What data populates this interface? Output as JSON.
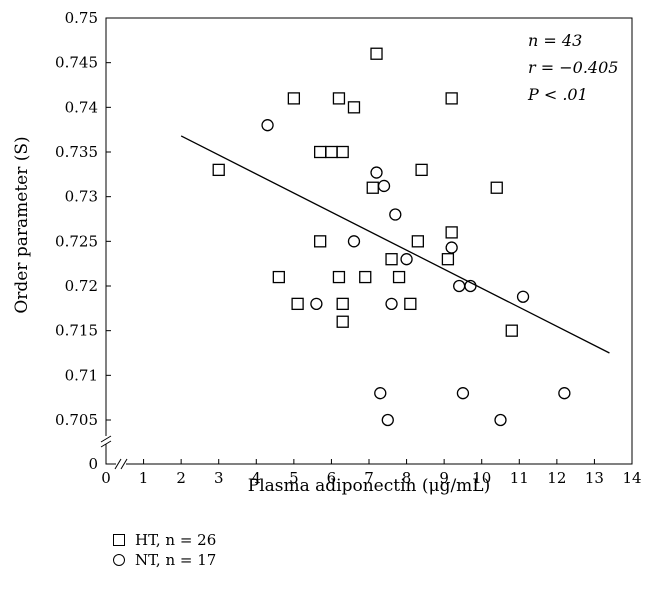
{
  "chart_data": {
    "type": "scatter",
    "xlabel": "Plasma adiponectin (μg/mL)",
    "ylabel": "Order parameter (S)",
    "xlim": [
      0,
      14
    ],
    "ylim": [
      0.705,
      0.75
    ],
    "x_ticks": [
      "0",
      "1",
      "2",
      "3",
      "4",
      "5",
      "6",
      "7",
      "8",
      "9",
      "10",
      "11",
      "12",
      "13",
      "14"
    ],
    "y_ticks": [
      "0.705",
      "0.71",
      "0.715",
      "0.72",
      "0.725",
      "0.73",
      "0.735",
      "0.74",
      "0.745",
      "0.75"
    ],
    "y_zero_label": "0",
    "axis_break": true,
    "annotations": [
      {
        "text": "n = 43"
      },
      {
        "text": "r = −0.405"
      },
      {
        "text": "P < .01"
      }
    ],
    "series": [
      {
        "name": "HT, n = 26",
        "marker": "square",
        "points": [
          [
            3.0,
            0.733
          ],
          [
            4.6,
            0.721
          ],
          [
            5.0,
            0.741
          ],
          [
            5.1,
            0.718
          ],
          [
            5.7,
            0.735
          ],
          [
            5.7,
            0.725
          ],
          [
            6.0,
            0.735
          ],
          [
            6.2,
            0.741
          ],
          [
            6.2,
            0.721
          ],
          [
            6.3,
            0.735
          ],
          [
            6.3,
            0.718
          ],
          [
            6.3,
            0.716
          ],
          [
            6.6,
            0.74
          ],
          [
            6.9,
            0.721
          ],
          [
            7.1,
            0.731
          ],
          [
            7.2,
            0.746
          ],
          [
            7.6,
            0.723
          ],
          [
            7.8,
            0.721
          ],
          [
            8.1,
            0.718
          ],
          [
            8.3,
            0.725
          ],
          [
            8.4,
            0.733
          ],
          [
            9.1,
            0.723
          ],
          [
            9.2,
            0.741
          ],
          [
            9.2,
            0.726
          ],
          [
            10.4,
            0.731
          ],
          [
            10.8,
            0.715
          ]
        ]
      },
      {
        "name": "NT, n = 17",
        "marker": "circle",
        "points": [
          [
            4.3,
            0.738
          ],
          [
            5.6,
            0.718
          ],
          [
            6.6,
            0.725
          ],
          [
            7.2,
            0.7327
          ],
          [
            7.3,
            0.708
          ],
          [
            7.4,
            0.7312
          ],
          [
            7.5,
            0.705
          ],
          [
            7.6,
            0.718
          ],
          [
            7.7,
            0.728
          ],
          [
            8.0,
            0.723
          ],
          [
            9.2,
            0.7243
          ],
          [
            9.4,
            0.72
          ],
          [
            9.5,
            0.708
          ],
          [
            9.7,
            0.72
          ],
          [
            10.5,
            0.705
          ],
          [
            11.1,
            0.7188
          ],
          [
            12.2,
            0.708
          ]
        ]
      }
    ],
    "regression_line": {
      "x": [
        2.0,
        13.4
      ],
      "y": [
        0.7368,
        0.7125
      ]
    }
  }
}
